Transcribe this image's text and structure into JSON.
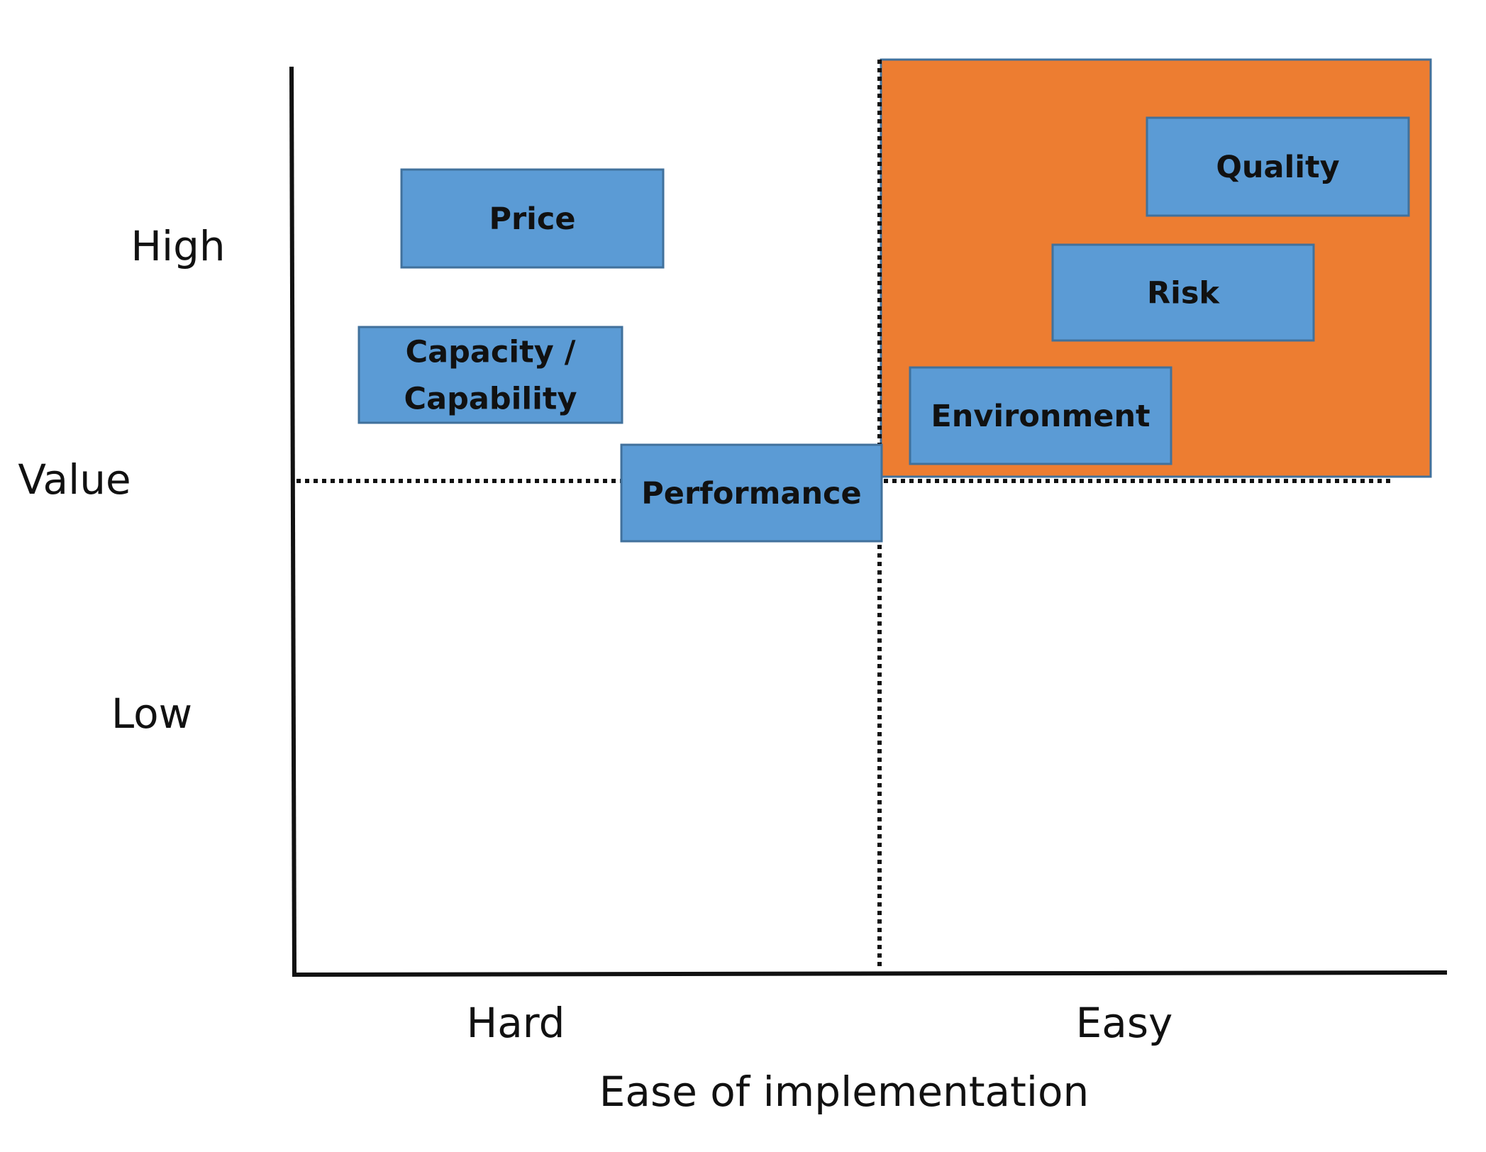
{
  "y_axis": {
    "high_label": "High",
    "value_label": "Value",
    "low_label": "Low"
  },
  "x_axis": {
    "hard_label": "Hard",
    "easy_label": "Easy",
    "title": "Ease of implementation"
  },
  "highlight_color": "#ED7D31",
  "box_color": "#5B9BD5",
  "items": [
    {
      "name": "price-box",
      "label_lines": [
        "Price"
      ]
    },
    {
      "name": "capacity-capability-box",
      "label_lines": [
        "Capacity /",
        "Capability"
      ]
    },
    {
      "name": "performance-box",
      "label_lines": [
        "Performance"
      ]
    },
    {
      "name": "quality-box",
      "label_lines": [
        "Quality"
      ]
    },
    {
      "name": "risk-box",
      "label_lines": [
        "Risk"
      ]
    },
    {
      "name": "environment-box",
      "label_lines": [
        "Environment"
      ]
    }
  ]
}
